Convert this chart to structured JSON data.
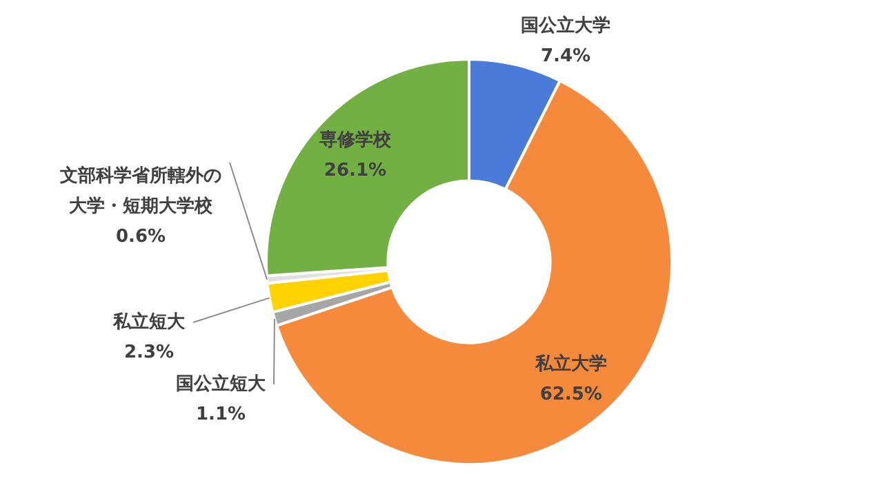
{
  "chart_data": {
    "type": "donut",
    "categories": [
      "国公立大学",
      "私立大学",
      "国公立短大",
      "私立短大",
      "文部科学省所轄外の大学・短期大学校",
      "専修学校"
    ],
    "values": [
      7.4,
      62.5,
      1.1,
      2.3,
      0.6,
      26.1
    ],
    "colors": [
      "#4a7bd8",
      "#f58a3c",
      "#a6a6a6",
      "#ffd200",
      "#e0e0e0",
      "#72b043"
    ],
    "value_labels": [
      "7.4%",
      "62.5%",
      "1.1%",
      "2.3%",
      "0.6%",
      "26.1%"
    ],
    "legend": false
  }
}
